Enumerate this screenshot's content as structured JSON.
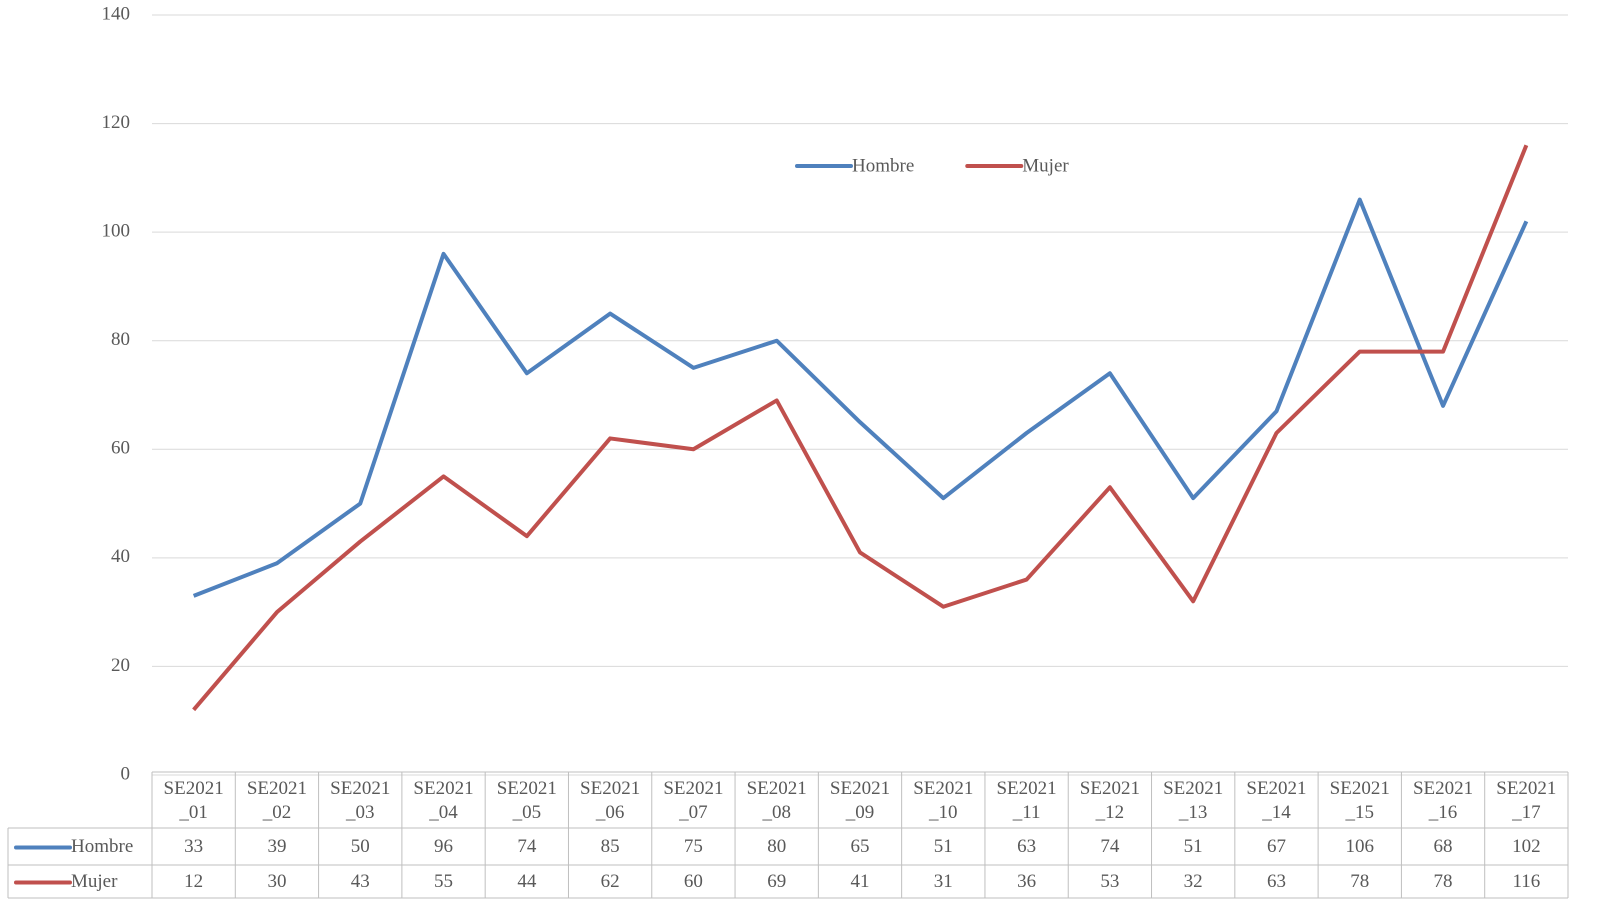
{
  "chart_data": {
    "type": "line",
    "categories": [
      "SE2021_01",
      "SE2021_02",
      "SE2021_03",
      "SE2021_04",
      "SE2021_05",
      "SE2021_06",
      "SE2021_07",
      "SE2021_08",
      "SE2021_09",
      "SE2021_10",
      "SE2021_11",
      "SE2021_12",
      "SE2021_13",
      "SE2021_14",
      "SE2021_15",
      "SE2021_16",
      "SE2021_17"
    ],
    "series": [
      {
        "name": "Hombre",
        "color": "#4f81bd",
        "values": [
          33,
          39,
          50,
          96,
          74,
          85,
          75,
          80,
          65,
          51,
          63,
          74,
          51,
          67,
          106,
          68,
          102
        ]
      },
      {
        "name": "Mujer",
        "color": "#c0504d",
        "values": [
          12,
          30,
          43,
          55,
          44,
          62,
          60,
          69,
          41,
          31,
          36,
          53,
          32,
          63,
          78,
          78,
          116
        ]
      }
    ],
    "ylim": [
      0,
      140
    ],
    "yticks": [
      0,
      20,
      40,
      60,
      80,
      100,
      120,
      140
    ],
    "grid": true,
    "legend": "top"
  }
}
